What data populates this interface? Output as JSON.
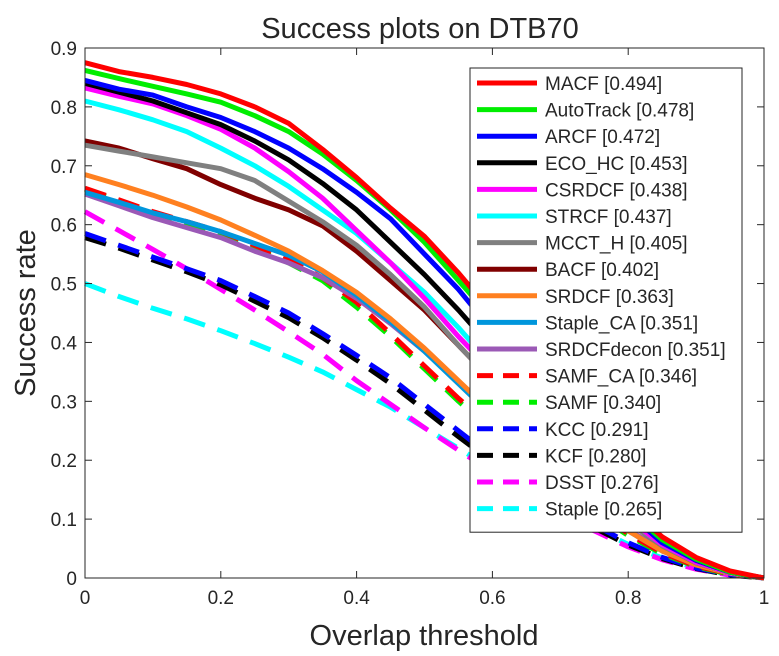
{
  "chart_data": {
    "type": "line",
    "title": "Success plots on DTB70",
    "xlabel": "Overlap threshold",
    "ylabel": "Success rate",
    "xlim": [
      0,
      1
    ],
    "ylim": [
      0,
      0.9
    ],
    "xticks": [
      0,
      0.2,
      0.4,
      0.6,
      0.8,
      1
    ],
    "yticks": [
      0,
      0.1,
      0.2,
      0.3,
      0.4,
      0.5,
      0.6,
      0.7,
      0.8,
      0.9
    ],
    "xtick_labels": [
      "0",
      "0.2",
      "0.4",
      "0.6",
      "0.8",
      "1"
    ],
    "ytick_labels": [
      "0",
      "0.1",
      "0.2",
      "0.3",
      "0.4",
      "0.5",
      "0.6",
      "0.7",
      "0.8",
      "0.9"
    ],
    "grid": false,
    "legend_position": "top-right",
    "x": [
      0,
      0.05,
      0.1,
      0.15,
      0.2,
      0.25,
      0.3,
      0.35,
      0.4,
      0.45,
      0.5,
      0.55,
      0.6,
      0.65,
      0.7,
      0.75,
      0.8,
      0.85,
      0.9,
      0.95,
      1
    ],
    "series": [
      {
        "name": "MACF [0.494]",
        "color": "#ff0000",
        "dash": false,
        "values": [
          0.875,
          0.86,
          0.85,
          0.838,
          0.822,
          0.8,
          0.772,
          0.728,
          0.68,
          0.628,
          0.58,
          0.518,
          0.45,
          0.37,
          0.28,
          0.19,
          0.12,
          0.07,
          0.035,
          0.012,
          0
        ]
      },
      {
        "name": "AutoTrack [0.478]",
        "color": "#00ee00",
        "dash": false,
        "values": [
          0.862,
          0.848,
          0.835,
          0.822,
          0.808,
          0.785,
          0.758,
          0.72,
          0.675,
          0.625,
          0.57,
          0.505,
          0.44,
          0.36,
          0.275,
          0.185,
          0.115,
          0.065,
          0.032,
          0.01,
          0
        ]
      },
      {
        "name": "ARCF [0.472]",
        "color": "#0000ff",
        "dash": false,
        "values": [
          0.845,
          0.83,
          0.82,
          0.8,
          0.782,
          0.758,
          0.73,
          0.695,
          0.655,
          0.61,
          0.55,
          0.49,
          0.42,
          0.345,
          0.265,
          0.18,
          0.11,
          0.06,
          0.03,
          0.01,
          0
        ]
      },
      {
        "name": "ECO_HC [0.453]",
        "color": "#000000",
        "dash": false,
        "values": [
          0.84,
          0.825,
          0.81,
          0.79,
          0.77,
          0.742,
          0.71,
          0.67,
          0.625,
          0.57,
          0.515,
          0.455,
          0.39,
          0.32,
          0.25,
          0.175,
          0.11,
          0.062,
          0.03,
          0.01,
          0
        ]
      },
      {
        "name": "CSRDCF [0.438]",
        "color": "#ff00ff",
        "dash": false,
        "values": [
          0.832,
          0.818,
          0.805,
          0.785,
          0.762,
          0.73,
          0.69,
          0.645,
          0.59,
          0.535,
          0.475,
          0.41,
          0.35,
          0.285,
          0.22,
          0.155,
          0.1,
          0.057,
          0.027,
          0.009,
          0
        ]
      },
      {
        "name": "STRCF [0.437]",
        "color": "#00ffff",
        "dash": false,
        "values": [
          0.81,
          0.795,
          0.778,
          0.758,
          0.73,
          0.7,
          0.665,
          0.625,
          0.585,
          0.535,
          0.485,
          0.425,
          0.36,
          0.29,
          0.222,
          0.157,
          0.1,
          0.057,
          0.027,
          0.009,
          0
        ]
      },
      {
        "name": "MCCT_H [0.405]",
        "color": "#808080",
        "dash": false,
        "values": [
          0.735,
          0.725,
          0.715,
          0.705,
          0.695,
          0.675,
          0.64,
          0.605,
          0.565,
          0.515,
          0.46,
          0.395,
          0.335,
          0.27,
          0.205,
          0.145,
          0.095,
          0.055,
          0.026,
          0.009,
          0
        ]
      },
      {
        "name": "BACF [0.402]",
        "color": "#800000",
        "dash": false,
        "values": [
          0.742,
          0.73,
          0.712,
          0.695,
          0.668,
          0.645,
          0.625,
          0.598,
          0.555,
          0.505,
          0.455,
          0.395,
          0.335,
          0.27,
          0.205,
          0.145,
          0.095,
          0.055,
          0.026,
          0.009,
          0
        ]
      },
      {
        "name": "SRDCF [0.363]",
        "color": "#ff8020",
        "dash": false,
        "values": [
          0.685,
          0.668,
          0.65,
          0.63,
          0.608,
          0.582,
          0.555,
          0.522,
          0.485,
          0.44,
          0.39,
          0.335,
          0.28,
          0.225,
          0.172,
          0.122,
          0.08,
          0.046,
          0.022,
          0.008,
          0
        ]
      },
      {
        "name": "Staple_CA [0.351]",
        "color": "#0096dc",
        "dash": false,
        "values": [
          0.655,
          0.638,
          0.62,
          0.605,
          0.588,
          0.568,
          0.548,
          0.52,
          0.48,
          0.435,
          0.385,
          0.33,
          0.275,
          0.222,
          0.17,
          0.12,
          0.08,
          0.046,
          0.022,
          0.008,
          0
        ]
      },
      {
        "name": "SRDCFdecon [0.351]",
        "color": "#9b59b6",
        "dash": false,
        "values": [
          0.652,
          0.632,
          0.612,
          0.595,
          0.578,
          0.555,
          0.535,
          0.51,
          0.475,
          0.432,
          0.385,
          0.332,
          0.28,
          0.226,
          0.173,
          0.123,
          0.082,
          0.048,
          0.024,
          0.009,
          0
        ]
      },
      {
        "name": "SAMF_CA [0.346]",
        "color": "#ff0000",
        "dash": true,
        "values": [
          0.662,
          0.642,
          0.622,
          0.605,
          0.588,
          0.565,
          0.54,
          0.51,
          0.468,
          0.415,
          0.36,
          0.305,
          0.255,
          0.205,
          0.16,
          0.115,
          0.075,
          0.043,
          0.02,
          0.007,
          0
        ]
      },
      {
        "name": "SAMF [0.340]",
        "color": "#00ee00",
        "dash": true,
        "values": [
          0.66,
          0.64,
          0.62,
          0.6,
          0.585,
          0.56,
          0.535,
          0.505,
          0.46,
          0.41,
          0.355,
          0.3,
          0.25,
          0.2,
          0.155,
          0.11,
          0.072,
          0.041,
          0.019,
          0.006,
          0
        ]
      },
      {
        "name": "KCC [0.291]",
        "color": "#0000ff",
        "dash": true,
        "values": [
          0.585,
          0.565,
          0.545,
          0.525,
          0.505,
          0.478,
          0.45,
          0.415,
          0.378,
          0.34,
          0.295,
          0.25,
          0.205,
          0.165,
          0.127,
          0.09,
          0.06,
          0.035,
          0.017,
          0.006,
          0
        ]
      },
      {
        "name": "KCF [0.280]",
        "color": "#000000",
        "dash": true,
        "values": [
          0.578,
          0.56,
          0.54,
          0.52,
          0.498,
          0.47,
          0.442,
          0.408,
          0.37,
          0.33,
          0.285,
          0.24,
          0.197,
          0.157,
          0.12,
          0.085,
          0.056,
          0.033,
          0.016,
          0.005,
          0
        ]
      },
      {
        "name": "DSST [0.276]",
        "color": "#ff00ff",
        "dash": true,
        "values": [
          0.622,
          0.59,
          0.558,
          0.525,
          0.49,
          0.455,
          0.418,
          0.38,
          0.335,
          0.295,
          0.255,
          0.217,
          0.18,
          0.145,
          0.112,
          0.08,
          0.053,
          0.031,
          0.015,
          0.005,
          0
        ]
      },
      {
        "name": "Staple [0.265]",
        "color": "#00ffff",
        "dash": true,
        "values": [
          0.5,
          0.478,
          0.458,
          0.44,
          0.42,
          0.398,
          0.375,
          0.35,
          0.32,
          0.29,
          0.255,
          0.22,
          0.185,
          0.15,
          0.117,
          0.085,
          0.057,
          0.034,
          0.017,
          0.006,
          0
        ]
      }
    ]
  }
}
